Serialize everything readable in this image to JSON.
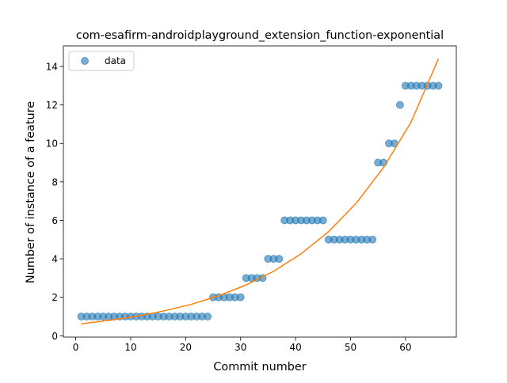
{
  "chart_data": {
    "type": "scatter",
    "title": "com-esafirm-androidplayground_extension_function-exponential",
    "xlabel": "Commit number",
    "ylabel": "Number of instance of a feature",
    "xlim": [
      -2.25,
      69.25
    ],
    "ylim": [
      -0.07,
      15.07
    ],
    "xticks": [
      0,
      10,
      20,
      30,
      40,
      50,
      60
    ],
    "yticks": [
      0,
      2,
      4,
      6,
      8,
      10,
      12,
      14
    ],
    "legend": {
      "position": "top-left",
      "entries": [
        "data"
      ]
    },
    "grid": false,
    "colors": {
      "data": "#1f77b4",
      "fit": "#ff7f0e"
    },
    "series": [
      {
        "name": "data",
        "kind": "scatter",
        "x": [
          1,
          2,
          3,
          4,
          5,
          6,
          7,
          8,
          9,
          10,
          11,
          12,
          13,
          14,
          15,
          16,
          17,
          18,
          19,
          20,
          21,
          22,
          23,
          24,
          25,
          26,
          27,
          28,
          29,
          30,
          31,
          32,
          33,
          34,
          35,
          36,
          37,
          38,
          39,
          40,
          41,
          42,
          43,
          44,
          45,
          46,
          47,
          48,
          49,
          50,
          51,
          52,
          53,
          54,
          55,
          56,
          57,
          58,
          59,
          60,
          61,
          62,
          63,
          64,
          65,
          66
        ],
        "y": [
          1,
          1,
          1,
          1,
          1,
          1,
          1,
          1,
          1,
          1,
          1,
          1,
          1,
          1,
          1,
          1,
          1,
          1,
          1,
          1,
          1,
          1,
          1,
          1,
          2,
          2,
          2,
          2,
          2,
          2,
          3,
          3,
          3,
          3,
          4,
          4,
          4,
          6,
          6,
          6,
          6,
          6,
          6,
          6,
          6,
          5,
          5,
          5,
          5,
          5,
          5,
          5,
          5,
          5,
          9,
          9,
          10,
          10,
          12,
          13,
          13,
          13,
          13,
          13,
          13,
          13
        ]
      },
      {
        "kind": "line",
        "x": [
          1,
          6,
          11,
          16,
          21,
          26,
          31,
          36,
          41,
          46,
          51,
          56,
          61,
          66
        ],
        "y": [
          0.62,
          0.8,
          1.01,
          1.29,
          1.63,
          2.08,
          2.64,
          3.35,
          4.26,
          5.41,
          6.88,
          8.74,
          11.1,
          14.4
        ]
      }
    ]
  }
}
